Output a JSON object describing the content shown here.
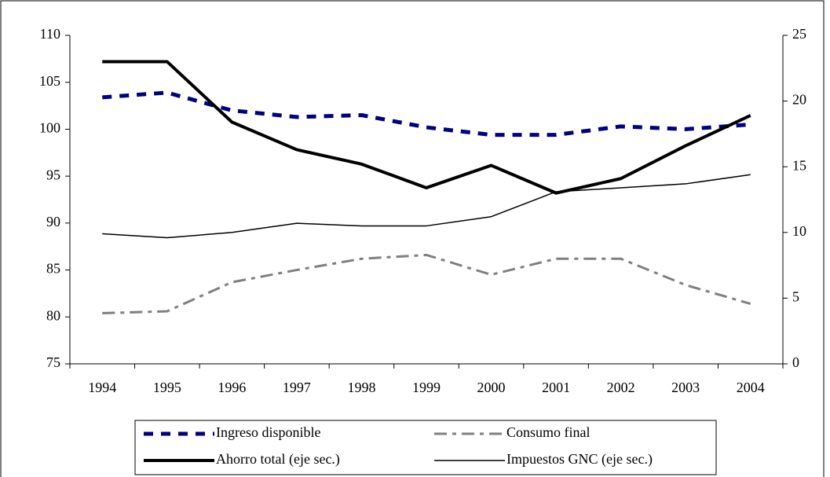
{
  "chart_data": {
    "type": "line",
    "categories": [
      "1994",
      "1995",
      "1996",
      "1997",
      "1998",
      "1999",
      "2000",
      "2001",
      "2002",
      "2003",
      "2004"
    ],
    "ylim": [
      75,
      110
    ],
    "yticks": [
      75,
      80,
      85,
      90,
      95,
      100,
      105,
      110
    ],
    "y2lim": [
      0,
      25
    ],
    "y2ticks": [
      0,
      5,
      10,
      15,
      20,
      25
    ],
    "legend": "bottom",
    "series": [
      {
        "name": "Ingreso disponible",
        "color": "#000080",
        "style": "dashed",
        "values": [
          103.4,
          103.9,
          102.0,
          101.3,
          101.5,
          100.2,
          99.4,
          99.4,
          100.3,
          100.0,
          100.5
        ]
      },
      {
        "name": "Consumo final",
        "color": "#808080",
        "style": "dashdot",
        "values": [
          80.4,
          80.6,
          83.7,
          85.0,
          86.2,
          86.6,
          84.5,
          86.2,
          86.2,
          83.4,
          81.4
        ]
      },
      {
        "name": "Ahorro total (eje sec.)",
        "color": "#000000",
        "style": "solid",
        "axis": "y2",
        "values": [
          23.0,
          23.0,
          18.4,
          16.3,
          15.2,
          13.4,
          15.1,
          13.0,
          14.1,
          16.6,
          18.9
        ]
      },
      {
        "name": "Impuestos GNC (eje sec.)",
        "color": "#000000",
        "style": "thin",
        "axis": "y2",
        "values": [
          9.9,
          9.6,
          10.0,
          10.7,
          10.5,
          10.5,
          11.2,
          13.1,
          13.4,
          13.7,
          14.4
        ]
      }
    ]
  }
}
